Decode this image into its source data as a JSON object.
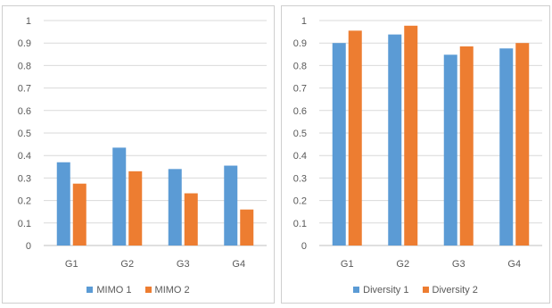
{
  "chart_data": [
    {
      "type": "bar",
      "categories": [
        "G1",
        "G2",
        "G3",
        "G4"
      ],
      "series": [
        {
          "name": "MIMO 1",
          "values": [
            0.37,
            0.435,
            0.34,
            0.355
          ],
          "color": "#5b9bd5"
        },
        {
          "name": "MIMO 2",
          "values": [
            0.275,
            0.33,
            0.232,
            0.16
          ],
          "color": "#ed7d31"
        }
      ],
      "yticks": [
        "0",
        "0.1",
        "0.2",
        "0.3",
        "0.4",
        "0.5",
        "0.6",
        "0.7",
        "0.8",
        "0.9",
        "1"
      ],
      "ylim": [
        0,
        1
      ],
      "grid": true,
      "legend_position": "bottom"
    },
    {
      "type": "bar",
      "categories": [
        "G1",
        "G2",
        "G3",
        "G4"
      ],
      "series": [
        {
          "name": "Diversity 1",
          "values": [
            0.9,
            0.938,
            0.848,
            0.876
          ],
          "color": "#5b9bd5"
        },
        {
          "name": "Diversity 2",
          "values": [
            0.955,
            0.977,
            0.885,
            0.9
          ],
          "color": "#ed7d31"
        }
      ],
      "yticks": [
        "0",
        "0.1",
        "0.2",
        "0.3",
        "0.4",
        "0.5",
        "0.6",
        "0.7",
        "0.8",
        "0.9",
        "1"
      ],
      "ylim": [
        0,
        1
      ],
      "grid": true,
      "legend_position": "bottom"
    }
  ]
}
